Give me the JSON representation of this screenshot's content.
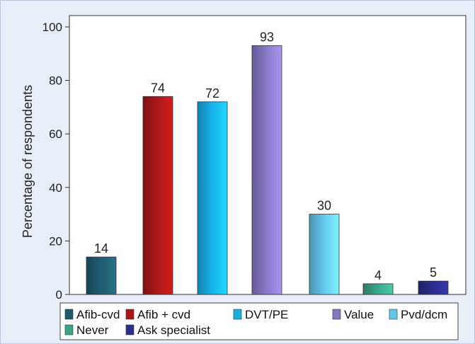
{
  "chart_data": {
    "type": "bar",
    "title": "",
    "xlabel": "",
    "ylabel": "Percentage of respondents",
    "ylim": [
      0,
      100
    ],
    "yticks": [
      0,
      20,
      40,
      60,
      80,
      100
    ],
    "grid": false,
    "legend_position": "bottom",
    "categories": [
      "Afib-cvd",
      "Afib + cvd",
      "DVT/PE",
      "Value",
      "Pvd/dcm",
      "Never",
      "Ask specialist"
    ],
    "values": [
      14,
      74,
      72,
      93,
      30,
      4,
      5
    ],
    "colors": [
      "#1f5a6e",
      "#a81818",
      "#17aee8",
      "#8677c3",
      "#62c4ea",
      "#3aa488",
      "#2c2c8c"
    ],
    "legend_label_for_values": [
      "14",
      "74",
      "72",
      "93",
      "30",
      "4",
      "5"
    ]
  }
}
